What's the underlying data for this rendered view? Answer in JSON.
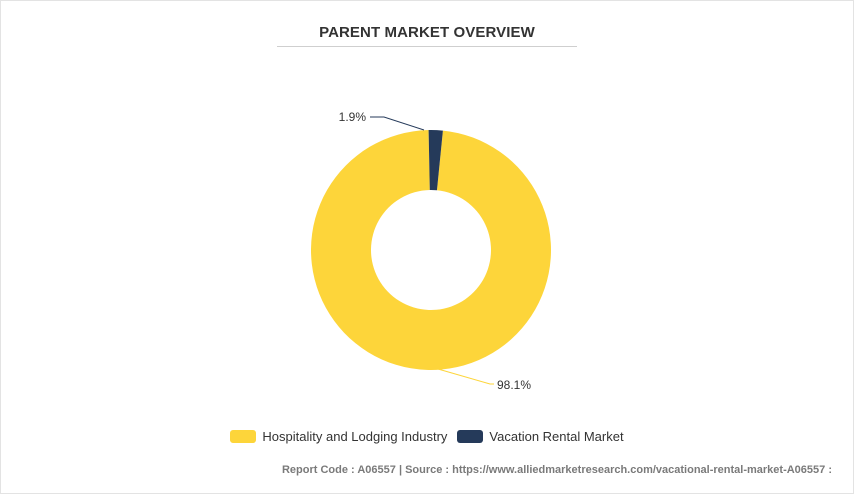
{
  "chart_data": {
    "type": "pie",
    "title": "PARENT MARKET OVERVIEW",
    "categories": [
      "Hospitality and Lodging Industry",
      "Vacation Rental Market"
    ],
    "values": [
      98.1,
      1.9
    ],
    "labels": [
      "98.1%",
      "1.9%"
    ],
    "colors": [
      "#FDD53A",
      "#253A5A"
    ],
    "donut": true,
    "legend_position": "bottom"
  },
  "footer": {
    "text": "Report Code : A06557  |  Source : https://www.alliedmarketresearch.com/vacational-rental-market-A06557 :"
  }
}
